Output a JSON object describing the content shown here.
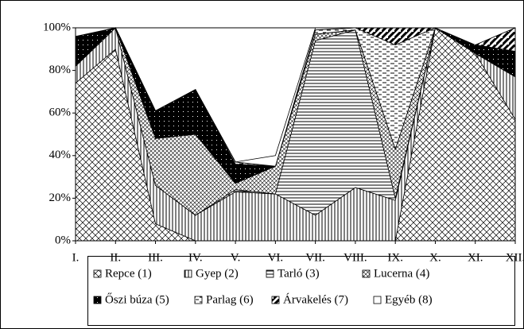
{
  "chart_data": {
    "type": "stacked_area",
    "categories": [
      "I.",
      "II.",
      "III.",
      "IV.",
      "V.",
      "VI.",
      "VII.",
      "VIII.",
      "IX.",
      "X.",
      "XI.",
      "XII."
    ],
    "series": [
      {
        "name": "Repce (1)",
        "values": [
          74,
          90,
          8,
          0,
          0,
          0,
          0,
          0,
          0,
          100,
          88,
          57
        ]
      },
      {
        "name": "Gyep (2)",
        "values": [
          8,
          10,
          18,
          12,
          23,
          22,
          12,
          25,
          19,
          0,
          0,
          20
        ]
      },
      {
        "name": "Tarló (3)",
        "values": [
          0,
          0,
          0,
          0,
          1,
          0,
          82,
          74,
          1,
          0,
          0,
          0
        ]
      },
      {
        "name": "Lucerna (4)",
        "values": [
          0,
          0,
          22,
          38,
          3,
          13,
          3,
          0,
          23,
          0,
          0,
          0
        ]
      },
      {
        "name": "Őszi búza (5)",
        "values": [
          14,
          0,
          13,
          21,
          9,
          0,
          0,
          0,
          0,
          0,
          4,
          12
        ]
      },
      {
        "name": "Parlag (6)",
        "values": [
          0,
          0,
          0,
          0,
          1,
          0,
          2,
          1,
          49,
          0,
          0,
          0
        ]
      },
      {
        "name": "Árvakelés (7)",
        "values": [
          0,
          0,
          0,
          0,
          0,
          0,
          0,
          0,
          8,
          0,
          0,
          11
        ]
      },
      {
        "name": "Egyéb (8)",
        "values": [
          4,
          0,
          0,
          0,
          0,
          5,
          1,
          0,
          0,
          0,
          8,
          0
        ]
      }
    ],
    "ylim": [
      0,
      100
    ],
    "yticks": [
      {
        "value": 0,
        "label": "0%"
      },
      {
        "value": 20,
        "label": "20%"
      },
      {
        "value": 40,
        "label": "40%"
      },
      {
        "value": 60,
        "label": "60%"
      },
      {
        "value": 80,
        "label": "80%"
      },
      {
        "value": 100,
        "label": "100%"
      }
    ]
  }
}
